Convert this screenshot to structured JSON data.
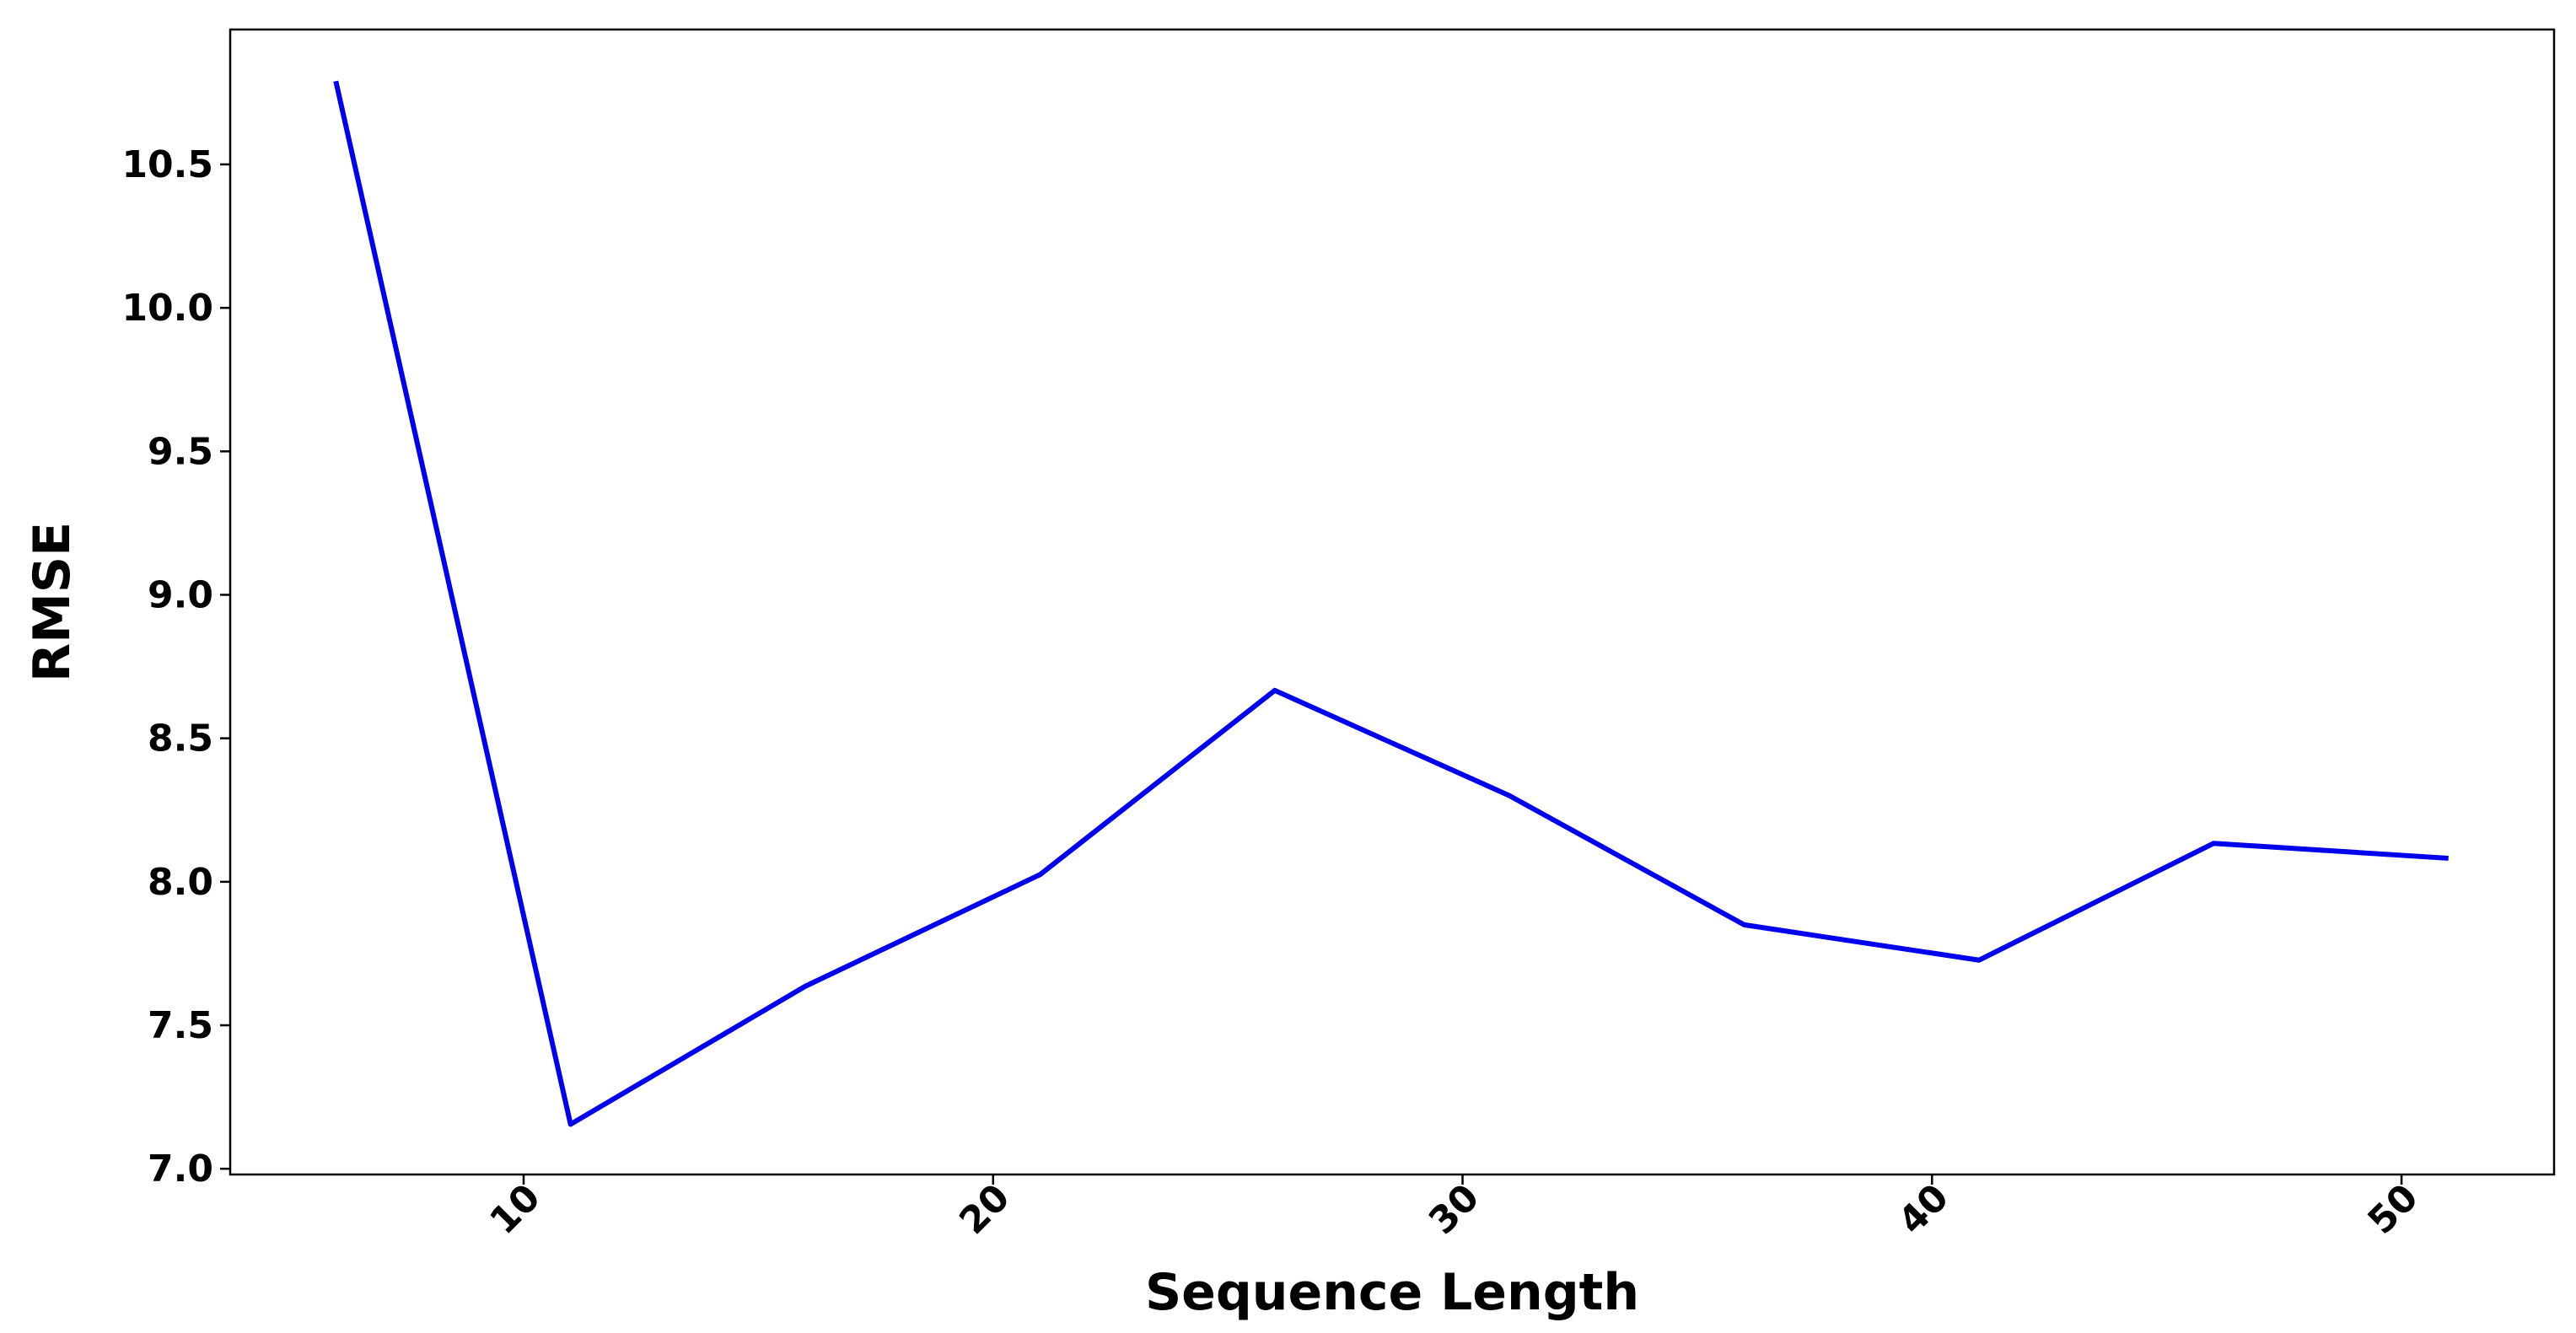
{
  "chart_data": {
    "type": "line",
    "x_label": "Sequence Length",
    "y_label": "RMSE",
    "x": [
      6,
      11,
      16,
      21,
      26,
      31,
      36,
      41,
      46,
      51
    ],
    "series": [
      {
        "color": "#0000ee",
        "values": [
          10.79,
          7.155,
          7.636,
          8.025,
          8.667,
          8.3,
          7.85,
          7.727,
          8.134,
          8.082
        ]
      }
    ],
    "xlim": [
      3.75,
      53.25
    ],
    "ylim": [
      6.98,
      10.97
    ],
    "xticks": [
      10,
      20,
      30,
      40,
      50
    ],
    "yticks": [
      {
        "value": 7,
        "label": "7.0"
      },
      {
        "value": 7.5,
        "label": "7.5"
      },
      {
        "value": 8,
        "label": "8.0"
      },
      {
        "value": 8.5,
        "label": "8.5"
      },
      {
        "value": 9,
        "label": "9.0"
      },
      {
        "value": 9.5,
        "label": "9.5"
      },
      {
        "value": 10,
        "label": "10.0"
      },
      10.5
    ],
    "grid": false
  }
}
